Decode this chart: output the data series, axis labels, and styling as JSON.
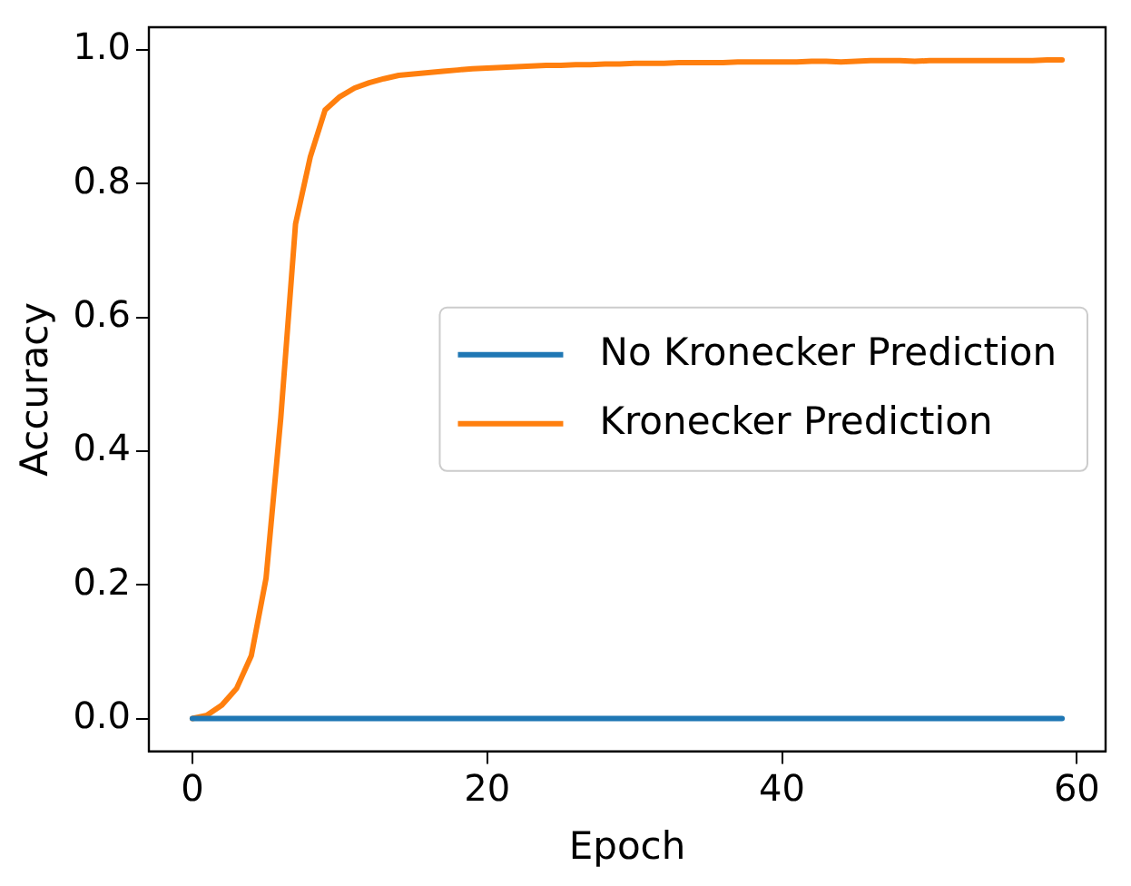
{
  "chart_data": {
    "type": "line",
    "xlabel": "Epoch",
    "ylabel": "Accuracy",
    "x": [
      0,
      1,
      2,
      3,
      4,
      5,
      6,
      7,
      8,
      9,
      10,
      11,
      12,
      13,
      14,
      15,
      16,
      17,
      18,
      19,
      20,
      21,
      22,
      23,
      24,
      25,
      26,
      27,
      28,
      29,
      30,
      31,
      32,
      33,
      34,
      35,
      36,
      37,
      38,
      39,
      40,
      41,
      42,
      43,
      44,
      45,
      46,
      47,
      48,
      49,
      50,
      51,
      52,
      53,
      54,
      55,
      56,
      57,
      58,
      59
    ],
    "series": [
      {
        "name": "No Kronecker Prediction",
        "color": "#1f77b4",
        "values": [
          0,
          0,
          0,
          0,
          0,
          0,
          0,
          0,
          0,
          0,
          0,
          0,
          0,
          0,
          0,
          0,
          0,
          0,
          0,
          0,
          0,
          0,
          0,
          0,
          0,
          0,
          0,
          0,
          0,
          0,
          0,
          0,
          0,
          0,
          0,
          0,
          0,
          0,
          0,
          0,
          0,
          0,
          0,
          0,
          0,
          0,
          0,
          0,
          0,
          0,
          0,
          0,
          0,
          0,
          0,
          0,
          0,
          0,
          0,
          0
        ]
      },
      {
        "name": "Kronecker Prediction",
        "color": "#ff7f0e",
        "values": [
          0,
          0.005,
          0.02,
          0.045,
          0.094,
          0.21,
          0.45,
          0.74,
          0.84,
          0.91,
          0.93,
          0.943,
          0.951,
          0.957,
          0.962,
          0.964,
          0.966,
          0.968,
          0.97,
          0.972,
          0.973,
          0.974,
          0.975,
          0.976,
          0.977,
          0.977,
          0.978,
          0.978,
          0.979,
          0.979,
          0.98,
          0.98,
          0.98,
          0.981,
          0.981,
          0.981,
          0.981,
          0.982,
          0.982,
          0.982,
          0.982,
          0.982,
          0.983,
          0.983,
          0.982,
          0.983,
          0.984,
          0.984,
          0.984,
          0.983,
          0.984,
          0.984,
          0.984,
          0.984,
          0.984,
          0.984,
          0.984,
          0.984,
          0.985,
          0.985
        ]
      }
    ],
    "xlim": [
      -2.95,
      61.95
    ],
    "xticks": [
      0,
      20,
      40,
      60
    ],
    "ylim": [
      -0.049,
      1.034
    ],
    "yticks": [
      {
        "value": 0,
        "label": "0.0"
      },
      {
        "value": 0.2,
        "label": "0.2"
      },
      {
        "value": 0.4,
        "label": "0.4"
      },
      {
        "value": 0.6,
        "label": "0.6"
      },
      {
        "value": 0.8,
        "label": "0.8"
      },
      {
        "value": 1,
        "label": "1.0"
      }
    ],
    "grid": false,
    "legend": "center right",
    "marker": "none",
    "line_style": "solid"
  }
}
